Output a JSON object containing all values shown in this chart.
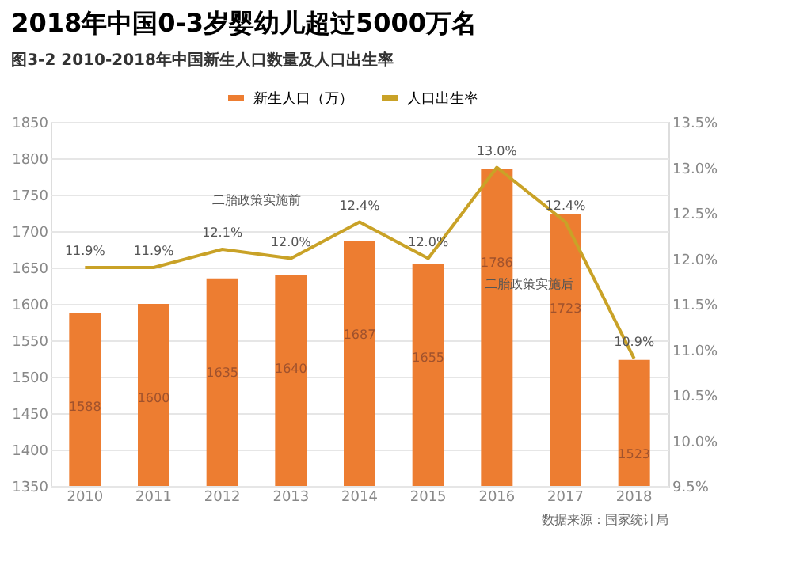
{
  "chart_data": {
    "type": "bar",
    "title": "2018年中国0-3岁婴幼儿超过5000万名",
    "subtitle": "图3-2 2010-2018年中国新生人口数量及人口出生率",
    "categories": [
      "2010",
      "2011",
      "2012",
      "2013",
      "2014",
      "2015",
      "2016",
      "2017",
      "2018"
    ],
    "series": [
      {
        "name": "新生人口（万）",
        "color": "#ed7d31",
        "values": [
          1588,
          1600,
          1635,
          1640,
          1687,
          1655,
          1786,
          1723,
          1523
        ]
      },
      {
        "name": "人口出生率",
        "type": "line",
        "axis": "y2",
        "color": "#c9a227",
        "values": [
          11.9,
          11.9,
          12.1,
          12.0,
          12.4,
          12.0,
          13.0,
          12.4,
          10.9
        ],
        "value_labels": [
          "11.9%",
          "11.9%",
          "12.1%",
          "12.0%",
          "12.4%",
          "12.0%",
          "13.0%",
          "12.4%",
          "10.9%"
        ]
      }
    ],
    "ylim": [
      1350,
      1850
    ],
    "yticks": [
      1350,
      1400,
      1450,
      1500,
      1550,
      1600,
      1650,
      1700,
      1750,
      1800,
      1850
    ],
    "y2lim": [
      9.5,
      13.5
    ],
    "y2ticks": [
      {
        "value": 9.5,
        "label": "9.5%"
      },
      {
        "value": 10,
        "label": "10.0%"
      },
      {
        "value": 10.5,
        "label": "10.5%"
      },
      {
        "value": 11,
        "label": "11.0%"
      },
      {
        "value": 11.5,
        "label": "11.5%"
      },
      {
        "value": 12,
        "label": "12.0%"
      },
      {
        "value": 12.5,
        "label": "12.5%"
      },
      {
        "value": 13,
        "label": "13.0%"
      },
      {
        "value": 13.5,
        "label": "13.5%"
      }
    ],
    "data_labels": true,
    "grid": "y",
    "legend": "top",
    "marker": "none",
    "annotations": [
      "二胎政策实施前",
      "二胎政策实施后",
      "数据来源：国家统计局"
    ]
  }
}
